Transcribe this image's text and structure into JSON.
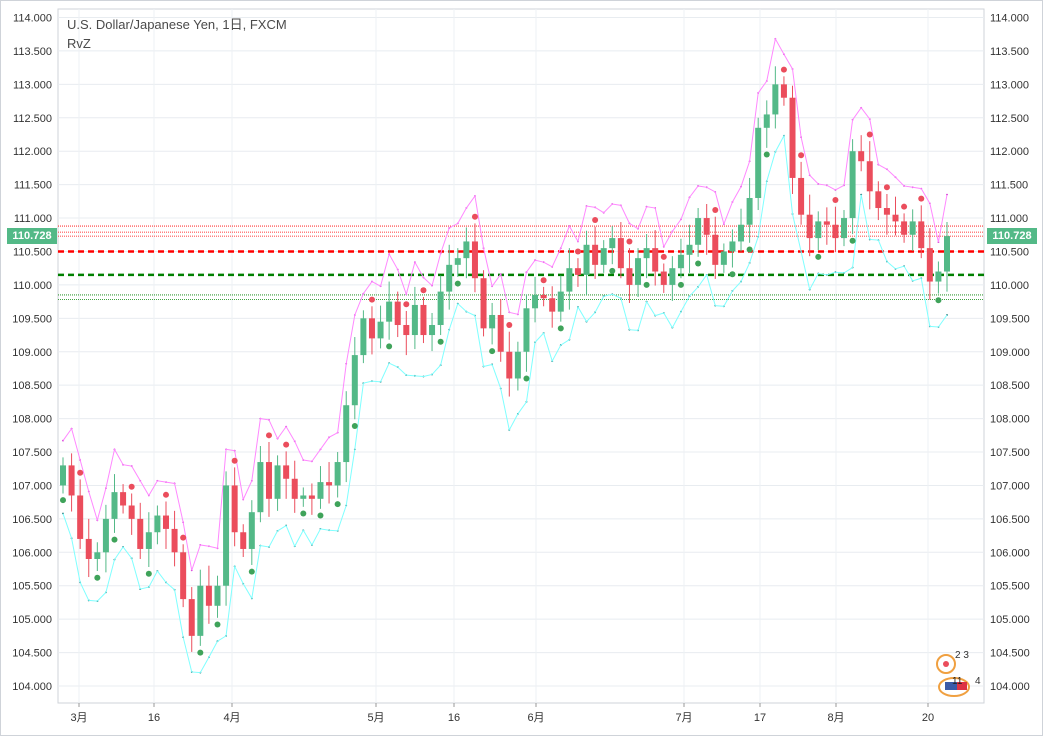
{
  "header": {
    "title": "U.S. Dollar/Japanese Yen, 1日, FXCM",
    "indicator": "RvZ"
  },
  "price_axis": {
    "ticks": [
      "114.000",
      "113.500",
      "113.000",
      "112.500",
      "112.000",
      "111.500",
      "111.000",
      "110.500",
      "110.000",
      "109.500",
      "109.000",
      "108.500",
      "108.000",
      "107.500",
      "107.000",
      "106.500",
      "106.000",
      "105.500",
      "105.000",
      "104.500",
      "104.000"
    ],
    "last_price_label": "110.728"
  },
  "time_axis": {
    "labels": [
      "3月",
      "16",
      "4月",
      "5月",
      "16",
      "6月",
      "7月",
      "17",
      "8月",
      "20"
    ]
  },
  "events": {
    "count_top": "2 3",
    "count_bottom": "11",
    "count_side": "4"
  },
  "colors": {
    "up": "#53b987",
    "down": "#eb4d5c",
    "upper_band": "#ff88ff",
    "lower_band": "#7fffff",
    "resistance": "#ff0000",
    "support": "#008000"
  },
  "chart_data": {
    "type": "candlestick",
    "title": "U.S. Dollar/Japanese Yen, 1日, FXCM",
    "ylim": [
      104.0,
      114.0
    ],
    "last_price": 110.728,
    "levels": {
      "resistance_main": 110.5,
      "support_main": 110.15,
      "resistance_thin": [
        110.73,
        110.79,
        110.88
      ],
      "support_thin": [
        109.85,
        109.78
      ]
    },
    "closes": [
      107.3,
      106.85,
      106.2,
      105.9,
      106.0,
      106.5,
      106.9,
      106.7,
      106.5,
      106.05,
      106.3,
      106.55,
      106.35,
      106.0,
      105.3,
      104.75,
      105.5,
      105.2,
      105.5,
      107.0,
      106.3,
      106.05,
      106.6,
      107.35,
      106.8,
      107.3,
      107.1,
      106.8,
      106.85,
      106.8,
      107.05,
      107.0,
      107.35,
      108.2,
      108.95,
      109.5,
      109.2,
      109.45,
      109.75,
      109.4,
      109.25,
      109.7,
      109.25,
      109.4,
      109.9,
      110.3,
      110.4,
      110.65,
      110.1,
      109.35,
      109.55,
      109.0,
      108.6,
      109.0,
      109.65,
      109.85,
      109.8,
      109.6,
      109.9,
      110.25,
      110.15,
      110.6,
      110.3,
      110.55,
      110.7,
      110.25,
      110.0,
      110.4,
      110.55,
      110.2,
      110.0,
      110.25,
      110.45,
      110.6,
      111.0,
      110.75,
      110.3,
      110.5,
      110.65,
      110.9,
      111.3,
      112.35,
      112.55,
      113.0,
      112.8,
      111.6,
      111.05,
      110.7,
      110.95,
      110.9,
      110.7,
      111.0,
      112.0,
      111.85,
      111.4,
      111.15,
      111.05,
      110.95,
      110.75,
      110.95,
      110.55,
      110.05,
      110.2,
      110.73
    ],
    "volumes_note": "",
    "months_range": "2017-03 to 2017-08"
  }
}
